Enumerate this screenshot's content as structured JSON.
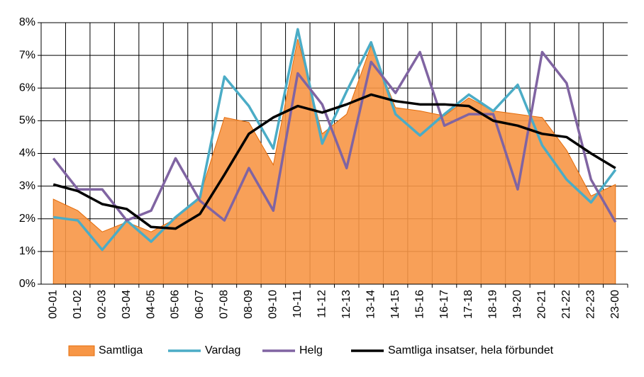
{
  "chart_data": {
    "type": "line",
    "categories": [
      "00-01",
      "01-02",
      "02-03",
      "03-04",
      "04-05",
      "05-06",
      "06-07",
      "07-08",
      "08-09",
      "09-10",
      "10-11",
      "11-12",
      "12-13",
      "13-14",
      "14-15",
      "15-16",
      "16-17",
      "17-18",
      "18-19",
      "19-20",
      "20-21",
      "21-22",
      "22-23",
      "23-00"
    ],
    "ylim": [
      0,
      8
    ],
    "yticks": [
      {
        "value": 0,
        "label": "0%"
      },
      {
        "value": 1,
        "label": "1%"
      },
      {
        "value": 2,
        "label": "2%"
      },
      {
        "value": 3,
        "label": "3%"
      },
      {
        "value": 4,
        "label": "4%"
      },
      {
        "value": 5,
        "label": "5%"
      },
      {
        "value": 6,
        "label": "6%"
      },
      {
        "value": 7,
        "label": "7%"
      },
      {
        "value": 8,
        "label": "8%"
      }
    ],
    "grid": true,
    "series": [
      {
        "name": "Samtliga",
        "type": "area",
        "color": "#f79646",
        "values": [
          2.6,
          2.25,
          1.6,
          1.9,
          1.6,
          2.0,
          2.7,
          5.1,
          4.95,
          3.65,
          7.5,
          4.6,
          5.2,
          7.3,
          5.4,
          5.3,
          5.15,
          5.7,
          5.3,
          5.2,
          5.1,
          4.1,
          2.7,
          3.05
        ]
      },
      {
        "name": "Vardag",
        "type": "line",
        "color": "#4bacc6",
        "values": [
          2.05,
          1.95,
          1.05,
          1.95,
          1.3,
          2.05,
          2.65,
          6.35,
          5.45,
          4.15,
          7.8,
          4.3,
          5.9,
          7.4,
          5.2,
          4.55,
          5.2,
          5.8,
          5.3,
          6.1,
          4.25,
          3.2,
          2.5,
          3.5
        ]
      },
      {
        "name": "Helg",
        "type": "line",
        "color": "#8064a2",
        "values": [
          3.85,
          2.9,
          2.9,
          1.95,
          2.25,
          3.85,
          2.55,
          1.95,
          3.55,
          2.25,
          6.45,
          5.5,
          3.55,
          6.8,
          5.85,
          7.1,
          4.85,
          5.2,
          5.2,
          2.9,
          7.1,
          6.15,
          3.2,
          1.9
        ]
      },
      {
        "name": "Samtliga insatser, hela förbundet",
        "type": "line",
        "color": "#000000",
        "values": [
          3.05,
          2.85,
          2.45,
          2.3,
          1.75,
          1.7,
          2.15,
          3.35,
          4.6,
          5.1,
          5.45,
          5.25,
          5.5,
          5.8,
          5.6,
          5.5,
          5.5,
          5.45,
          5.0,
          4.85,
          4.6,
          4.5,
          4.0,
          3.55
        ]
      }
    ]
  }
}
